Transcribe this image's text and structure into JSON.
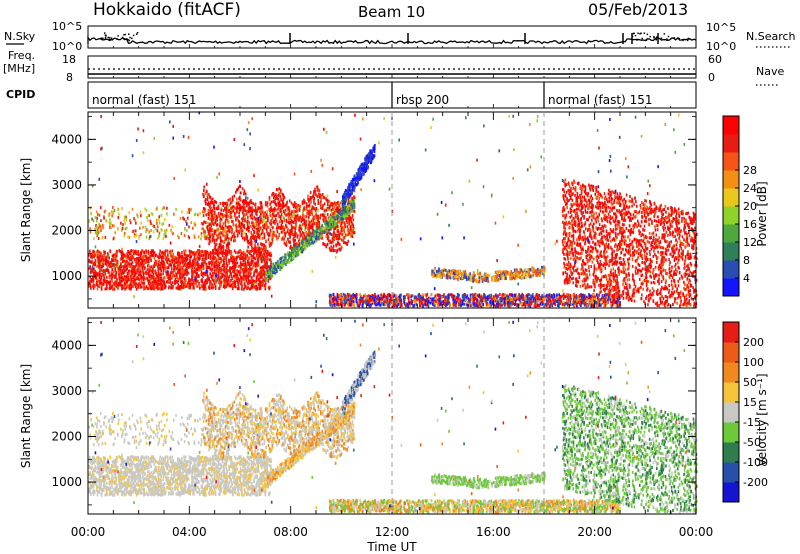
{
  "header": {
    "station": "Hokkaido (fitACF)",
    "beam": "Beam 10",
    "date": "05/Feb/2013"
  },
  "strip": {
    "nsky_label": "N.Sky",
    "nsky_hi": "10^5",
    "nsky_lo": "10^0",
    "nsky_hi_right": "10^5",
    "nsky_lo_right": "10^0",
    "nsearch_label": "N.Search",
    "freq_label": "Freq.",
    "freq_unit": "[MHz]",
    "freq_hi": "18",
    "freq_lo": "8",
    "nave_hi": "60",
    "nave_lo": "0",
    "nave_label": "Nave",
    "cpid_label": "CPID",
    "modes": [
      {
        "label": "normal (fast) 151",
        "start_h": 0
      },
      {
        "label": "rbsp 200",
        "start_h": 12
      },
      {
        "label": "normal (fast) 151",
        "start_h": 18
      }
    ]
  },
  "chart_data": [
    {
      "type": "heatmap",
      "title": "",
      "xlabel": "Time UT",
      "ylabel": "Slant Range [km]",
      "xlim": [
        0,
        24
      ],
      "ylim": [
        300,
        4600
      ],
      "x_ticks": [
        "00:00",
        "04:00",
        "08:00",
        "12:00",
        "16:00",
        "20:00",
        "00:00"
      ],
      "y_ticks": [
        "1000",
        "2000",
        "3000",
        "4000"
      ],
      "colorbar": {
        "label": "Power [dB]",
        "ticks": [
          "4",
          "8",
          "12",
          "16",
          "20",
          "24",
          "28"
        ],
        "colors": [
          "#1414ff",
          "#2a4cb3",
          "#2f7f5a",
          "#4fa83c",
          "#8fd22a",
          "#e8c81a",
          "#f48f13",
          "#f45516",
          "#e81c10",
          "#ff0000"
        ]
      }
    },
    {
      "type": "heatmap",
      "title": "",
      "xlabel": "Time UT",
      "ylabel": "Slant Range [km]",
      "xlim": [
        0,
        24
      ],
      "ylim": [
        300,
        4600
      ],
      "x_ticks": [
        "00:00",
        "04:00",
        "08:00",
        "12:00",
        "16:00",
        "20:00",
        "00:00"
      ],
      "y_ticks": [
        "1000",
        "2000",
        "3000",
        "4000"
      ],
      "colorbar": {
        "label": "Velocity [m s⁻¹]",
        "ticks": [
          "200",
          "100",
          "50",
          "15",
          "-15",
          "-50",
          "-100",
          "-200"
        ],
        "colors": [
          "#1414d2",
          "#2850a8",
          "#2e7d4d",
          "#6cc93a",
          "#c8c8c4",
          "#f5c43a",
          "#f08a1f",
          "#ee5a18",
          "#e41e14"
        ]
      }
    }
  ],
  "x_axis_title": "Time UT"
}
